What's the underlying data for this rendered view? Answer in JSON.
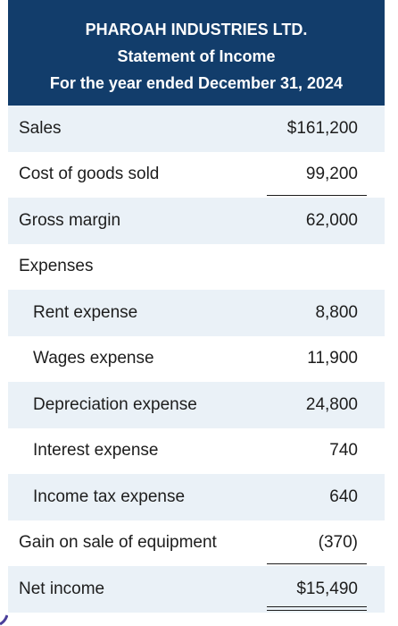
{
  "header": {
    "company": "PHAROAH INDUSTRIES LTD.",
    "statement": "Statement of Income",
    "period": "For the year ended December 31, 2024"
  },
  "rows": [
    {
      "label": "Sales",
      "amount": "$161,200"
    },
    {
      "label": "Cost of goods sold",
      "amount": "99,200"
    },
    {
      "label": "Gross margin",
      "amount": "62,000"
    },
    {
      "label": "Expenses",
      "amount": ""
    },
    {
      "label": "Rent expense",
      "amount": "8,800"
    },
    {
      "label": "Wages expense",
      "amount": "11,900"
    },
    {
      "label": "Depreciation expense",
      "amount": "24,800"
    },
    {
      "label": "Interest expense",
      "amount": "740"
    },
    {
      "label": "Income tax expense",
      "amount": "640"
    },
    {
      "label": "Gain on sale of equipment",
      "amount": "(370)"
    },
    {
      "label": "Net income",
      "amount": "$15,490"
    }
  ],
  "colors": {
    "header_bg": "#123d6b",
    "header_text": "#ffffff",
    "row_shade": "#eaf1f7",
    "text": "#1d1d1d"
  }
}
